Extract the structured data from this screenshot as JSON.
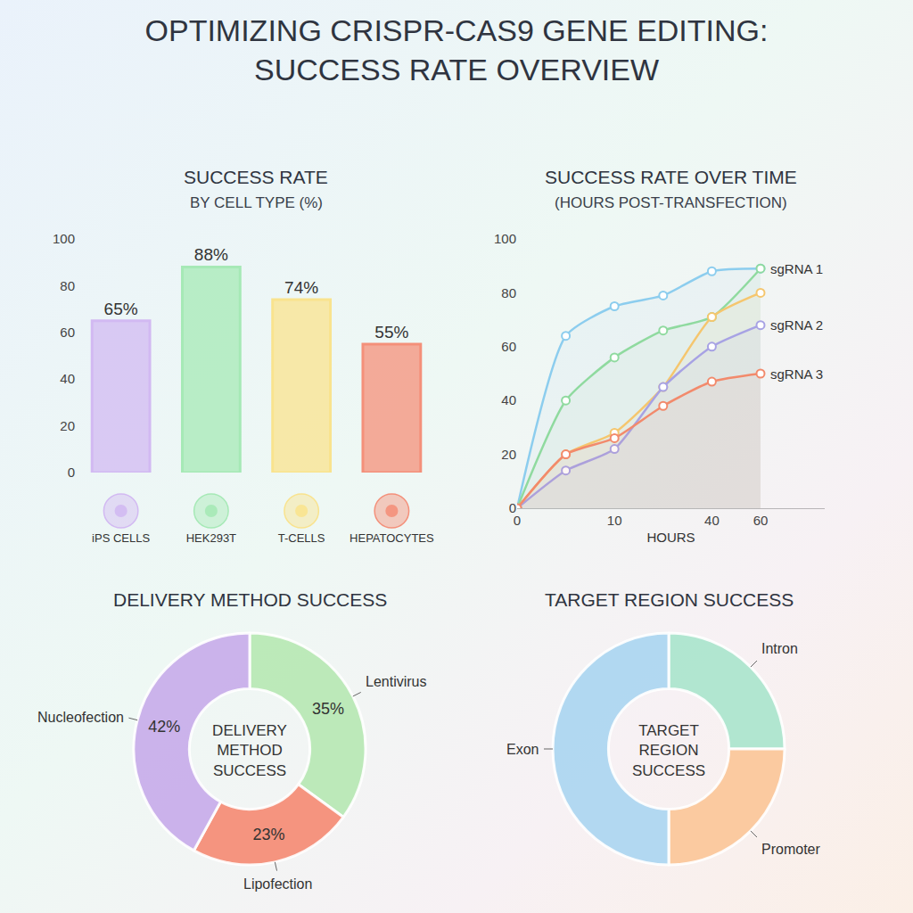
{
  "title": "OPTIMIZING CRISPR-CAS9 GENE EDITING: SUCCESS RATE OVERVIEW",
  "chart_data": [
    {
      "type": "bar",
      "title": "SUCCESS RATE",
      "subtitle": "BY CELL TYPE (%)",
      "categories": [
        "iPS CELLS",
        "HEK293T",
        "T-CELLS",
        "HEPATOCYTES"
      ],
      "values": [
        65,
        88,
        74,
        55
      ],
      "value_labels": [
        "65%",
        "88%",
        "74%",
        "55%"
      ],
      "colors": [
        "#d2b9f2",
        "#a6e9b6",
        "#f9e38e",
        "#f4907a"
      ],
      "ylim": [
        0,
        100
      ],
      "yticks": [
        0,
        20,
        40,
        60,
        80,
        100
      ],
      "grid": false,
      "data_labels": true
    },
    {
      "type": "line",
      "title": "SUCCESS RATE OVER TIME",
      "subtitle": "(HOURS POST-TRANSFECTION)",
      "x_label": "HOURS",
      "categories": [
        "0",
        null,
        "10",
        null,
        "40",
        "60"
      ],
      "series": [
        {
          "name": "sgRNA 1",
          "color": "#8ccdee",
          "values": [
            0,
            64,
            75,
            79,
            88,
            89
          ]
        },
        {
          "color": "#8fda9f",
          "values": [
            0,
            40,
            56,
            66,
            71,
            89
          ]
        },
        {
          "color": "#f5c66e",
          "values": [
            0,
            20,
            28,
            45,
            71,
            80
          ]
        },
        {
          "name": "sgRNA 2",
          "color": "#a7a2e4",
          "values": [
            0,
            14,
            22,
            45,
            60,
            68
          ]
        },
        {
          "name": "sgRNA 3",
          "color": "#f28a6c",
          "values": [
            0,
            20,
            26,
            38,
            47,
            50
          ]
        }
      ],
      "ylim": [
        0,
        100
      ],
      "yticks": [
        0,
        20,
        40,
        60,
        80,
        100
      ],
      "grid": false,
      "marker": "circle"
    },
    {
      "type": "pie",
      "title": "DELIVERY METHOD SUCCESS",
      "center_text": "DELIVERY METHOD SUCCESS",
      "categories": [
        "Lentivirus",
        "Lipofection",
        "Nucleofection"
      ],
      "values": [
        35,
        23,
        42
      ],
      "value_labels": [
        "35%",
        "23%",
        "42%"
      ],
      "colors": [
        "#b6e8b2",
        "#f58a72",
        "#c6abea"
      ],
      "data_labels": true
    },
    {
      "type": "pie",
      "title": "TARGET REGION SUCCESS",
      "center_text": "TARGET REGION SUCCESS",
      "categories": [
        "Intron",
        "Promoter",
        "Exon"
      ],
      "values": [
        25,
        25,
        50
      ],
      "colors": [
        "#a8e4cc",
        "#fbc597",
        "#aad5f1"
      ],
      "data_labels": false
    }
  ]
}
